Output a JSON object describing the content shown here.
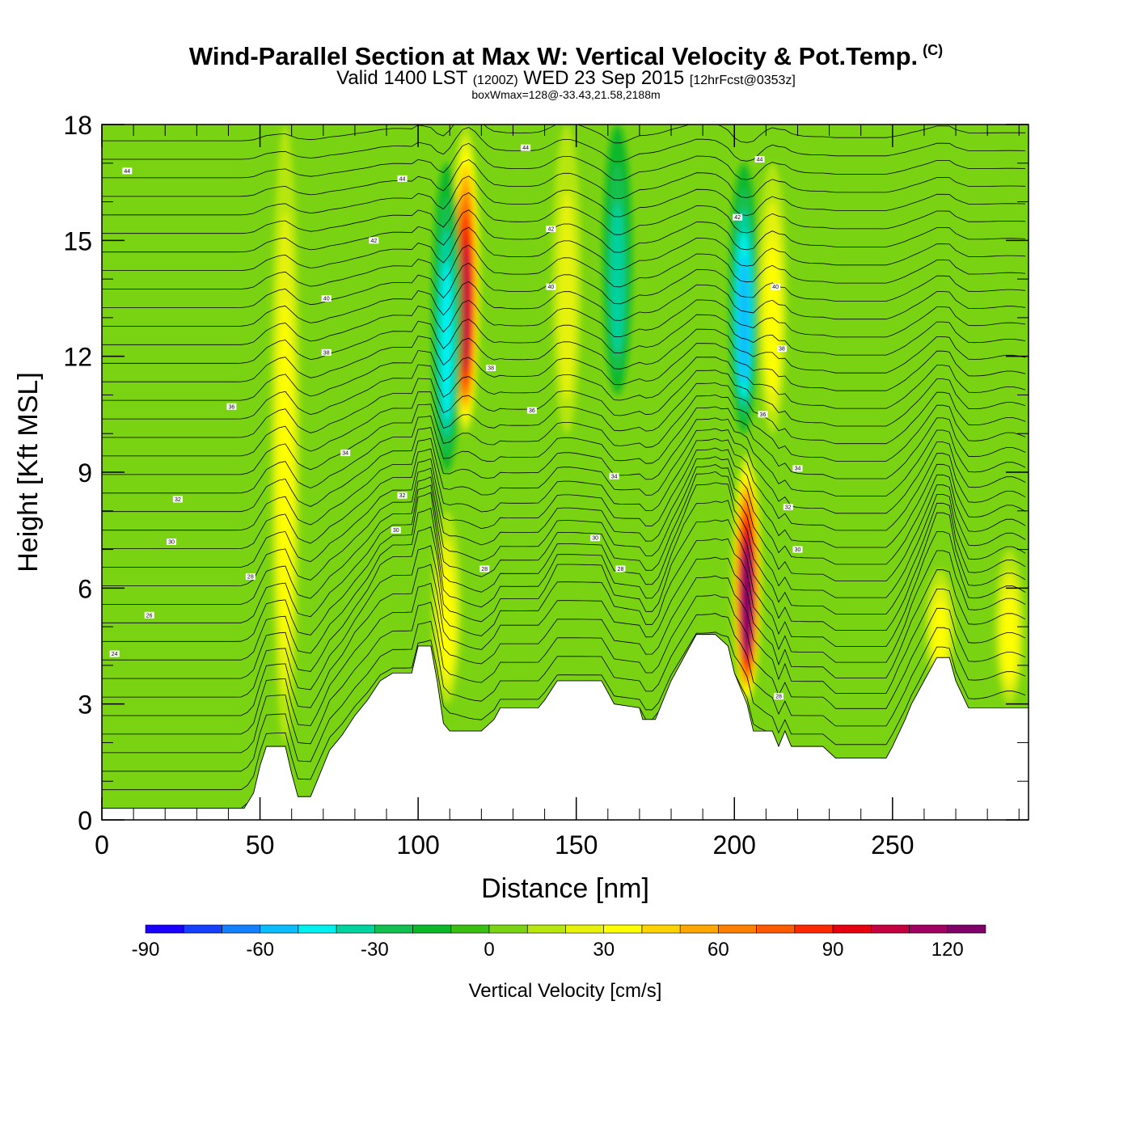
{
  "header": {
    "title": "Wind-Parallel Section at Max W: Vertical Velocity & Pot.Temp.",
    "copyright": "(C)",
    "valid_prefix": "Valid 1400 LST",
    "valid_utc": "(1200Z)",
    "valid_date": "WED 23 Sep 2015",
    "forecast": "[12hrFcst@0353z]",
    "box_max": "boxWmax=128@-33.43,21.58,2188m"
  },
  "chart_data": {
    "type": "heatmap",
    "title": "Wind-Parallel Section at Max W: Vertical Velocity & Pot.Temp.",
    "xlabel": "Distance [nm]",
    "ylabel": "Height [Kft MSL]",
    "xlim": [
      0,
      293
    ],
    "ylim": [
      0,
      18
    ],
    "xticks": [
      0,
      50,
      100,
      150,
      200,
      250
    ],
    "yticks": [
      0,
      3,
      6,
      9,
      12,
      15,
      18
    ],
    "colorbar": {
      "title": "Vertical Velocity [cm/s]",
      "levels": [
        -90,
        -80,
        -70,
        -60,
        -50,
        -40,
        -30,
        -20,
        -10,
        0,
        10,
        20,
        30,
        40,
        50,
        60,
        70,
        80,
        90,
        100,
        110,
        120,
        130
      ],
      "tick_labels": [
        -90,
        -60,
        -30,
        0,
        30,
        60,
        90,
        120
      ],
      "colors": [
        "#1a00ff",
        "#1640ff",
        "#1280ff",
        "#0bbcff",
        "#00f0f0",
        "#00d2a0",
        "#12c050",
        "#0cb82a",
        "#38bf12",
        "#7ad312",
        "#b6e60e",
        "#e6f20a",
        "#ffff00",
        "#ffd200",
        "#ffa600",
        "#ff8000",
        "#ff5a00",
        "#ff2800",
        "#e60010",
        "#c40040",
        "#a00060",
        "#80006a"
      ]
    },
    "vertical_velocity_features": [
      {
        "kind": "updraft",
        "x": 115,
        "z_range": [
          10,
          18
        ],
        "peak_cm_s": 110
      },
      {
        "kind": "downdraft",
        "x": 109,
        "z_range": [
          9,
          17
        ],
        "peak_cm_s": -45
      },
      {
        "kind": "updraft",
        "x": 109,
        "z_range": [
          3,
          8
        ],
        "peak_cm_s": 40
      },
      {
        "kind": "updraft",
        "x": 58,
        "z_range": [
          2,
          18
        ],
        "peak_cm_s": 40
      },
      {
        "kind": "downdraft",
        "x": 163,
        "z_range": [
          11,
          18
        ],
        "peak_cm_s": -40
      },
      {
        "kind": "updraft",
        "x": 147,
        "z_range": [
          10,
          18
        ],
        "peak_cm_s": 30
      },
      {
        "kind": "downdraft",
        "x": 203,
        "z_range": [
          10,
          17
        ],
        "peak_cm_s": -60
      },
      {
        "kind": "updraft",
        "x": 204,
        "z_range": [
          3,
          9.5
        ],
        "peak_cm_s": 128
      },
      {
        "kind": "updraft",
        "x": 212,
        "z_range": [
          10,
          17
        ],
        "peak_cm_s": 40
      },
      {
        "kind": "updraft",
        "x": 265,
        "z_range": [
          3.5,
          6.5
        ],
        "peak_cm_s": 35
      },
      {
        "kind": "updraft",
        "x": 287,
        "z_range": [
          3,
          7
        ],
        "peak_cm_s": 40
      }
    ],
    "terrain_kft": [
      [
        0,
        0.3
      ],
      [
        30,
        0.3
      ],
      [
        45,
        0.3
      ],
      [
        48,
        0.7
      ],
      [
        50,
        1.4
      ],
      [
        52,
        1.9
      ],
      [
        58,
        1.9
      ],
      [
        60,
        1.2
      ],
      [
        62,
        0.6
      ],
      [
        66,
        0.6
      ],
      [
        68,
        1.0
      ],
      [
        70,
        1.4
      ],
      [
        72,
        1.8
      ],
      [
        76,
        2.2
      ],
      [
        80,
        2.7
      ],
      [
        84,
        3.1
      ],
      [
        88,
        3.6
      ],
      [
        92,
        3.8
      ],
      [
        98,
        3.8
      ],
      [
        100,
        4.5
      ],
      [
        104,
        4.5
      ],
      [
        106,
        3.6
      ],
      [
        108,
        2.5
      ],
      [
        110,
        2.3
      ],
      [
        120,
        2.3
      ],
      [
        124,
        2.6
      ],
      [
        126,
        2.9
      ],
      [
        138,
        2.9
      ],
      [
        140,
        3.1
      ],
      [
        144,
        3.6
      ],
      [
        158,
        3.6
      ],
      [
        160,
        3.3
      ],
      [
        162,
        3.0
      ],
      [
        170,
        2.9
      ],
      [
        171,
        2.6
      ],
      [
        175,
        2.6
      ],
      [
        177,
        3.0
      ],
      [
        180,
        3.6
      ],
      [
        184,
        4.2
      ],
      [
        188,
        4.8
      ],
      [
        194,
        4.8
      ],
      [
        198,
        4.5
      ],
      [
        200,
        3.8
      ],
      [
        204,
        3.0
      ],
      [
        206,
        2.3
      ],
      [
        212,
        2.3
      ],
      [
        214,
        1.9
      ],
      [
        216,
        2.3
      ],
      [
        218,
        1.9
      ],
      [
        228,
        1.9
      ],
      [
        232,
        1.6
      ],
      [
        248,
        1.6
      ],
      [
        250,
        1.9
      ],
      [
        254,
        2.6
      ],
      [
        256,
        3.0
      ],
      [
        260,
        3.6
      ],
      [
        264,
        4.2
      ],
      [
        268,
        4.2
      ],
      [
        270,
        3.6
      ],
      [
        274,
        2.9
      ],
      [
        293,
        2.9
      ]
    ],
    "theta_contour_labels": [
      {
        "x": 8,
        "z": 16.8,
        "text": "44"
      },
      {
        "x": 95,
        "z": 16.6,
        "text": "44"
      },
      {
        "x": 134,
        "z": 17.4,
        "text": "44"
      },
      {
        "x": 208,
        "z": 17.1,
        "text": "44"
      },
      {
        "x": 86,
        "z": 15.0,
        "text": "42"
      },
      {
        "x": 142,
        "z": 15.3,
        "text": "42"
      },
      {
        "x": 201,
        "z": 15.6,
        "text": "42"
      },
      {
        "x": 71,
        "z": 13.5,
        "text": "40"
      },
      {
        "x": 142,
        "z": 13.8,
        "text": "40"
      },
      {
        "x": 213,
        "z": 13.8,
        "text": "40"
      },
      {
        "x": 71,
        "z": 12.1,
        "text": "38"
      },
      {
        "x": 123,
        "z": 11.7,
        "text": "38"
      },
      {
        "x": 215,
        "z": 12.2,
        "text": "38"
      },
      {
        "x": 41,
        "z": 10.7,
        "text": "36"
      },
      {
        "x": 136,
        "z": 10.6,
        "text": "36"
      },
      {
        "x": 209,
        "z": 10.5,
        "text": "36"
      },
      {
        "x": 77,
        "z": 9.5,
        "text": "34"
      },
      {
        "x": 162,
        "z": 8.9,
        "text": "34"
      },
      {
        "x": 220,
        "z": 9.1,
        "text": "34"
      },
      {
        "x": 24,
        "z": 8.3,
        "text": "32"
      },
      {
        "x": 95,
        "z": 8.4,
        "text": "32"
      },
      {
        "x": 217,
        "z": 8.1,
        "text": "32"
      },
      {
        "x": 22,
        "z": 7.2,
        "text": "30"
      },
      {
        "x": 93,
        "z": 7.5,
        "text": "30"
      },
      {
        "x": 156,
        "z": 7.3,
        "text": "30"
      },
      {
        "x": 220,
        "z": 7.0,
        "text": "30"
      },
      {
        "x": 47,
        "z": 6.3,
        "text": "28"
      },
      {
        "x": 121,
        "z": 6.5,
        "text": "28"
      },
      {
        "x": 164,
        "z": 6.5,
        "text": "28"
      },
      {
        "x": 15,
        "z": 5.3,
        "text": "26"
      },
      {
        "x": 4,
        "z": 4.3,
        "text": "24"
      },
      {
        "x": 214,
        "z": 3.2,
        "text": "28"
      }
    ]
  }
}
